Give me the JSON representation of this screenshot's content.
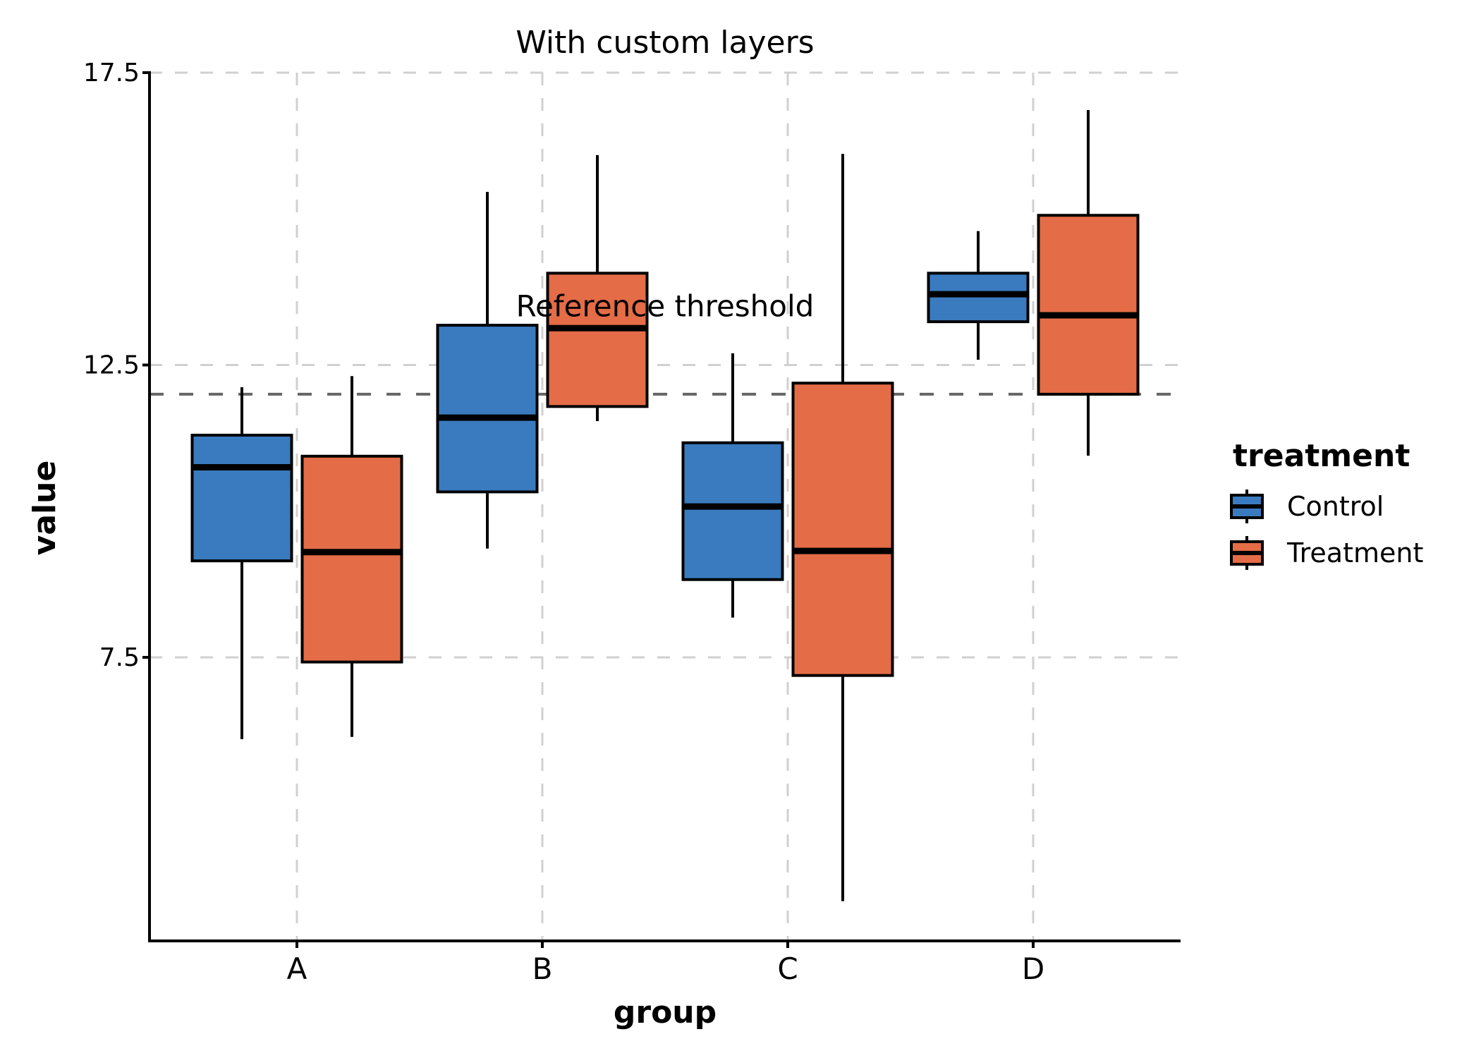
{
  "chart_data": {
    "type": "box",
    "title": "With custom layers",
    "xlabel": "group",
    "ylabel": "value",
    "categories": [
      "A",
      "B",
      "C",
      "D"
    ],
    "ylim": [
      2.65,
      17.5
    ],
    "yticks": [
      7.5,
      12.5,
      17.5
    ],
    "ytick_labels": [
      "7.5",
      "12.5",
      "17.5"
    ],
    "grid": true,
    "legend": {
      "title": "treatment",
      "placement": "right",
      "entries": [
        "Control",
        "Treatment"
      ]
    },
    "series": [
      {
        "name": "Control",
        "color": "#3a7bbf",
        "boxes": [
          {
            "category": "A",
            "whisker_low": 6.1,
            "q1": 9.15,
            "median": 10.75,
            "q3": 11.3,
            "whisker_high": 12.12
          },
          {
            "category": "B",
            "whisker_low": 9.36,
            "q1": 10.33,
            "median": 11.6,
            "q3": 13.18,
            "whisker_high": 15.46
          },
          {
            "category": "C",
            "whisker_low": 8.18,
            "q1": 8.83,
            "median": 10.08,
            "q3": 11.17,
            "whisker_high": 12.7
          },
          {
            "category": "D",
            "whisker_low": 12.59,
            "q1": 13.24,
            "median": 13.71,
            "q3": 14.07,
            "whisker_high": 14.79
          }
        ]
      },
      {
        "name": "Treatment",
        "color": "#e46c47",
        "boxes": [
          {
            "category": "A",
            "whisker_low": 6.14,
            "q1": 7.42,
            "median": 9.3,
            "q3": 10.94,
            "whisker_high": 12.31
          },
          {
            "category": "B",
            "whisker_low": 11.54,
            "q1": 11.79,
            "median": 13.13,
            "q3": 14.07,
            "whisker_high": 16.09
          },
          {
            "category": "C",
            "whisker_low": 3.33,
            "q1": 7.19,
            "median": 9.32,
            "q3": 12.19,
            "whisker_high": 16.11
          },
          {
            "category": "D",
            "whisker_low": 10.95,
            "q1": 12.0,
            "median": 13.35,
            "q3": 15.06,
            "whisker_high": 16.86
          }
        ]
      }
    ],
    "reference_line": {
      "value": 12.0,
      "style": "dashed",
      "color": "#666666",
      "label": "Reference threshold",
      "label_x": 2.5,
      "label_y": 13.5
    }
  }
}
